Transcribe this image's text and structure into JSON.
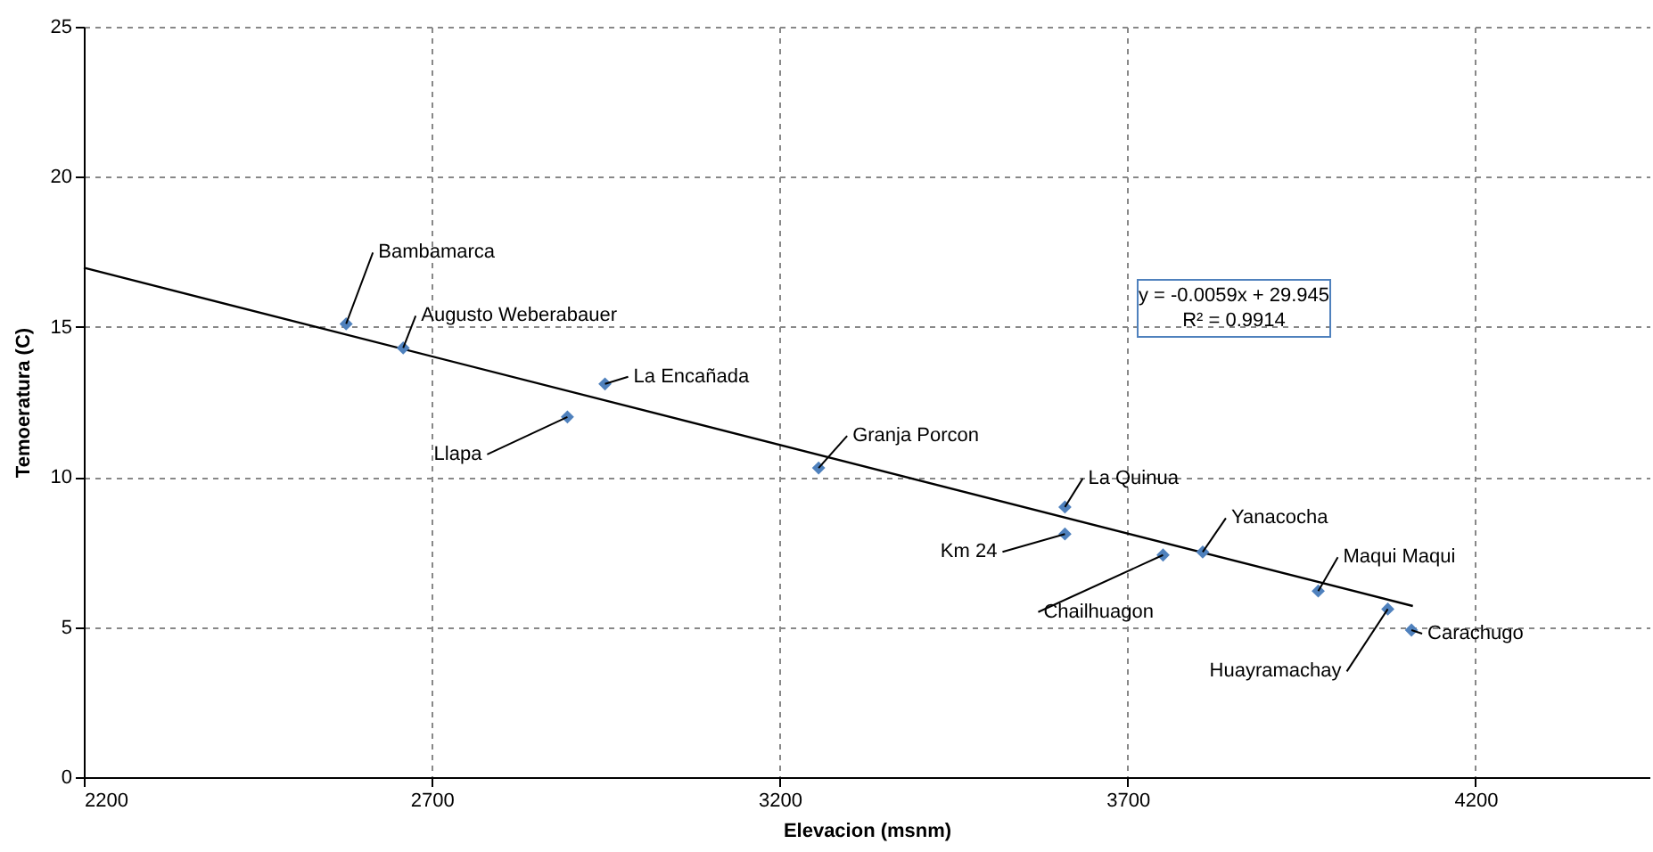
{
  "chart_data": {
    "type": "scatter",
    "xlabel": "Elevacion (msnm)",
    "ylabel": "Temoeratura (C)",
    "xlim": [
      2200,
      4450
    ],
    "xticks": [
      2200,
      2700,
      3200,
      3700,
      4200
    ],
    "ylim": [
      0,
      25
    ],
    "yticks": [
      0,
      5,
      10,
      15,
      20,
      25
    ],
    "grid": true,
    "marker": "diamond",
    "series": [
      {
        "color": "#4f81bd",
        "x": [
          2577,
          2659,
          2949,
          2895,
          3256,
          3610,
          3610,
          3751,
          3808,
          3974,
          4074,
          4108
        ],
        "values": [
          15.1,
          14.3,
          13.1,
          12.0,
          10.3,
          9.0,
          8.1,
          7.4,
          7.5,
          6.2,
          5.6,
          4.9
        ]
      },
      {
        "type": "line",
        "color": "#000000",
        "marker": "none",
        "x": [
          2200,
          4110
        ],
        "values": [
          16.97,
          5.7
        ]
      }
    ],
    "annotations": [
      "y = -0.0059x + 29.945",
      "R² = 0.9914",
      {
        "text": "Bambamarca",
        "x": 2577,
        "y": 15.1
      },
      {
        "text": "Augusto Weberabauer",
        "x": 2659,
        "y": 14.3
      },
      {
        "text": "La Encañada",
        "x": 2949,
        "y": 13.1
      },
      {
        "text": "Llapa",
        "x": 2895,
        "y": 12.0
      },
      {
        "text": "Granja Porcon",
        "x": 3256,
        "y": 10.3
      },
      {
        "text": "La Quinua",
        "x": 3610,
        "y": 9.0
      },
      {
        "text": "Km 24",
        "x": 3610,
        "y": 8.1
      },
      {
        "text": "Chailhuagon",
        "x": 3751,
        "y": 7.4
      },
      {
        "text": "Yanacocha",
        "x": 3808,
        "y": 7.5
      },
      {
        "text": "Maqui Maqui",
        "x": 3974,
        "y": 6.2
      },
      {
        "text": "Huayramachay",
        "x": 4074,
        "y": 5.6
      },
      {
        "text": "Carachugo",
        "x": 4108,
        "y": 4.9
      }
    ]
  }
}
